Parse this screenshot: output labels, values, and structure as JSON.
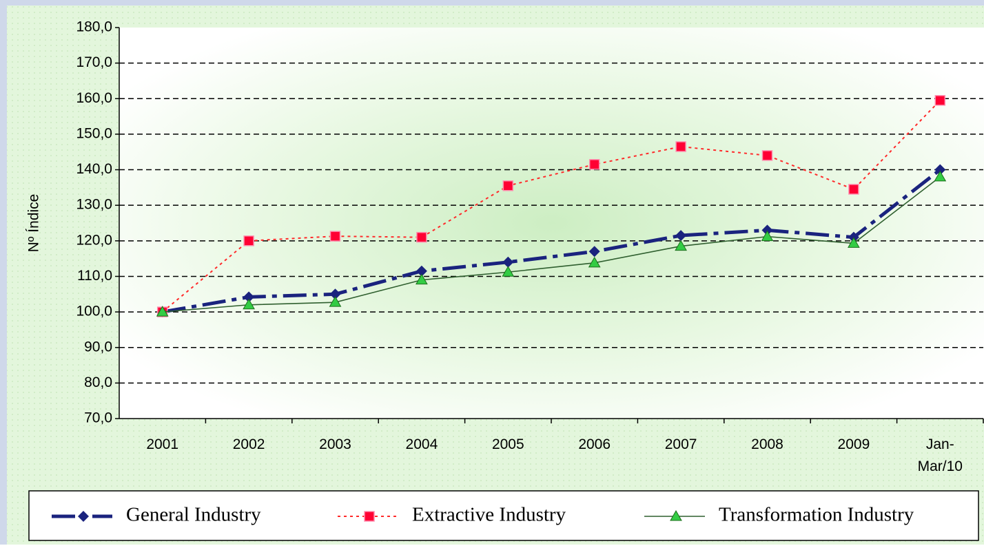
{
  "chart_data": {
    "type": "line",
    "y_label": "Nº Índice",
    "categories": [
      "2001",
      "2002",
      "2003",
      "2004",
      "2005",
      "2006",
      "2007",
      "2008",
      "2009",
      "Jan-\nMar/10"
    ],
    "series": [
      {
        "name": "General Industry",
        "color": "#1a237e",
        "values": [
          100,
          104.2,
          105,
          111.5,
          114,
          117,
          121.5,
          123,
          121,
          140
        ]
      },
      {
        "name": "Extractive Industry",
        "color": "#ff2a2a",
        "values": [
          100,
          120,
          121.3,
          121,
          135.5,
          141.5,
          146.5,
          144,
          134.5,
          159.5
        ]
      },
      {
        "name": "Transformation Industry",
        "color": "#2f5f2f",
        "values": [
          100,
          102,
          102.7,
          109,
          111.2,
          113.8,
          118.5,
          121.2,
          119.3,
          138
        ]
      }
    ],
    "ylim": [
      70,
      180
    ],
    "yticks": [
      {
        "value": 70,
        "label": "70,0"
      },
      {
        "value": 80,
        "label": "80,0"
      },
      {
        "value": 90,
        "label": "90,0"
      },
      {
        "value": 100,
        "label": "100,0"
      },
      {
        "value": 110,
        "label": "110,0"
      },
      {
        "value": 120,
        "label": "120,0"
      },
      {
        "value": 130,
        "label": "130,0"
      },
      {
        "value": 140,
        "label": "140,0"
      },
      {
        "value": 150,
        "label": "150,0"
      },
      {
        "value": 160,
        "label": "160,0"
      },
      {
        "value": 170,
        "label": "170,0"
      },
      {
        "value": 180,
        "label": "180,0"
      }
    ],
    "grid": true,
    "legend": "bottom"
  }
}
